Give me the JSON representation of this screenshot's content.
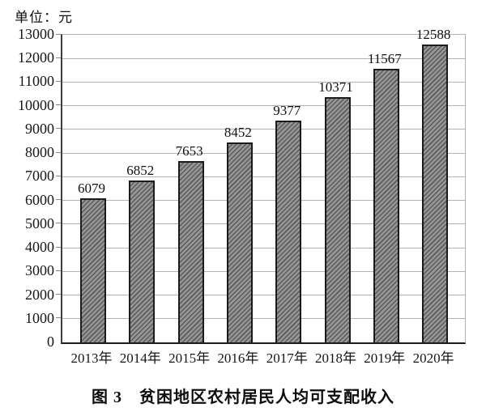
{
  "unit_label": "单位：元",
  "title": "图 3　贫困地区农村居民人均可支配收入",
  "chart_data": {
    "type": "bar",
    "categories": [
      "2013年",
      "2014年",
      "2015年",
      "2016年",
      "2017年",
      "2018年",
      "2019年",
      "2020年"
    ],
    "values": [
      6079,
      6852,
      7653,
      8452,
      9377,
      10371,
      11567,
      12588
    ],
    "title": "图 3　贫困地区农村居民人均可支配收入",
    "unit": "单位：元",
    "xlabel": "",
    "ylabel": "元",
    "ylim": [
      0,
      13000
    ],
    "ytick_step": 1000,
    "grid": true,
    "legend": "none",
    "bar_fill_color": "#969696",
    "bar_hatch_color": "#5a5a5a",
    "bar_border_color": "#1b1b1b",
    "grid_color": "#b3b3b3",
    "axis_color": "#3d3d3d"
  }
}
